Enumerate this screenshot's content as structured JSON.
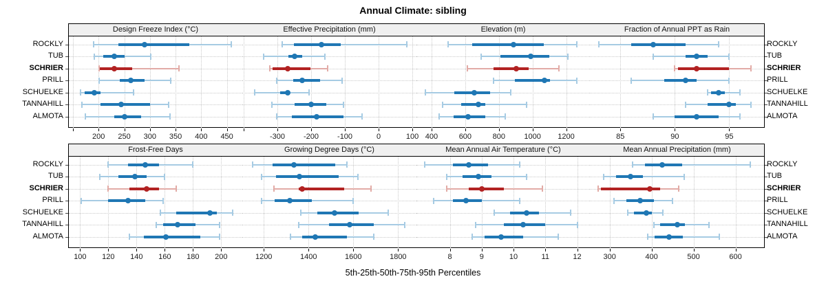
{
  "title": "Annual Climate: sibling",
  "xlabel": "5th-25th-50th-75th-95th Percentiles",
  "sites": [
    "ROCKLY",
    "TUB",
    "SCHRIER",
    "PRILL",
    "SCHUELKE",
    "TANNAHILL",
    "ALMOTA"
  ],
  "highlight_site": "SCHRIER",
  "colors": {
    "normal": "#1F77B4",
    "normal_light": "#A6CBE3",
    "highlight": "#B22222",
    "highlight_light": "#E2ABA6",
    "strip_bg": "#F0F0F0",
    "grid": "#C9C9C9",
    "border": "#000000",
    "tick_text": "#1a1a1a"
  },
  "chart_data": {
    "type": "dotplot-percentiles",
    "percentile_labels": [
      "5th",
      "25th",
      "50th",
      "75th",
      "95th"
    ],
    "site_order_top_to_bottom": [
      "ROCKLY",
      "TUB",
      "SCHRIER",
      "PRILL",
      "SCHUELKE",
      "TANNAHILL",
      "ALMOTA"
    ],
    "grid": "dotted",
    "layout_rows": 2,
    "layout_cols": 4,
    "panels": [
      {
        "title": "Design Freeze Index (°C)",
        "domain": [
          142,
          480
        ],
        "ticks": [
          200,
          250,
          300,
          350,
          400,
          450
        ],
        "minor_ticks": [
          150
        ],
        "values": [
          [
            190,
            239,
            290,
            377,
            459
          ],
          [
            192,
            209,
            230,
            250,
            302
          ],
          [
            201,
            203,
            231,
            265,
            356
          ],
          [
            201,
            241,
            263,
            290,
            340
          ],
          [
            165,
            173,
            191,
            204,
            268
          ],
          [
            167,
            204,
            244,
            300,
            336
          ],
          [
            174,
            230,
            250,
            283,
            339
          ]
        ]
      },
      {
        "title": "Effective Precipitation (mm)",
        "domain": [
          -404,
          112
        ],
        "ticks": [
          -300,
          -200,
          -100,
          0,
          100
        ],
        "minor_ticks": [
          -400
        ],
        "values": [
          [
            -285,
            -252,
            -170,
            -112,
            84
          ],
          [
            -340,
            -268,
            -250,
            -226,
            -159
          ],
          [
            -322,
            -315,
            -269,
            -203,
            -152
          ],
          [
            -303,
            -253,
            -226,
            -173,
            -108
          ],
          [
            -367,
            -292,
            -270,
            -263,
            -207
          ],
          [
            -317,
            -248,
            -200,
            -156,
            -105
          ],
          [
            -302,
            -258,
            -183,
            -105,
            -50
          ]
        ]
      },
      {
        "title": "Elevation (m)",
        "domain": [
          310,
          1341
        ],
        "ticks": [
          400,
          600,
          800,
          1000,
          1200
        ],
        "minor_ticks": [],
        "values": [
          [
            500,
            640,
            885,
            1065,
            1265
          ],
          [
            693,
            808,
            990,
            1100,
            1212
          ],
          [
            614,
            767,
            903,
            976,
            1155
          ],
          [
            767,
            897,
            1072,
            1104,
            1265
          ],
          [
            363,
            536,
            654,
            747,
            870
          ],
          [
            464,
            577,
            679,
            720,
            965
          ],
          [
            445,
            532,
            618,
            720,
            836
          ]
        ]
      },
      {
        "title": "Fraction of Annual PPT as Rain",
        "domain": [
          82.2,
          98.2
        ],
        "ticks": [
          85,
          90,
          95
        ],
        "minor_ticks": [],
        "values": [
          [
            83,
            86,
            88,
            91,
            94
          ],
          [
            88,
            91,
            92,
            93,
            95
          ],
          [
            90,
            90.3,
            92,
            95,
            97
          ],
          [
            86,
            89,
            91,
            92,
            95
          ],
          [
            93,
            93.3,
            94,
            94.6,
            96
          ],
          [
            91,
            93,
            95,
            95.6,
            97
          ],
          [
            88,
            90,
            92,
            94,
            96
          ]
        ]
      },
      {
        "title": "Frost-Free Days",
        "domain": [
          92,
          215
        ],
        "ticks": [
          100,
          120,
          140,
          160,
          180,
          200
        ],
        "minor_ticks": [],
        "values": [
          [
            120,
            134,
            146,
            156,
            180
          ],
          [
            114,
            127,
            139,
            147,
            160
          ],
          [
            120,
            135,
            147,
            156,
            168
          ],
          [
            101,
            120,
            134,
            146,
            159
          ],
          [
            157,
            168,
            192,
            197,
            208
          ],
          [
            154,
            159,
            169,
            182,
            199
          ],
          [
            135,
            145,
            161,
            185,
            199
          ]
        ]
      },
      {
        "title": "Growing Degree Days (°C)",
        "domain": [
          1104,
          1882
        ],
        "ticks": [
          1200,
          1400,
          1600,
          1800
        ],
        "minor_ticks": [],
        "values": [
          [
            1150,
            1240,
            1335,
            1520,
            1570
          ],
          [
            1190,
            1255,
            1360,
            1535,
            1620
          ],
          [
            1245,
            1355,
            1370,
            1560,
            1680
          ],
          [
            1190,
            1250,
            1315,
            1415,
            1600
          ],
          [
            1365,
            1440,
            1515,
            1625,
            1755
          ],
          [
            1355,
            1490,
            1585,
            1690,
            1830
          ],
          [
            1320,
            1370,
            1430,
            1570,
            1690
          ]
        ]
      },
      {
        "title": "Mean Annual Air Temperature (°C)",
        "domain": [
          6.95,
          12.4
        ],
        "ticks": [
          8,
          9,
          10,
          11,
          12
        ],
        "minor_ticks": [],
        "values": [
          [
            7.2,
            8.1,
            8.6,
            9.2,
            10.2
          ],
          [
            7.9,
            8.4,
            8.9,
            9.3,
            10.4
          ],
          [
            7.9,
            8.6,
            9.0,
            9.7,
            10.9
          ],
          [
            7.5,
            8.1,
            8.5,
            9.0,
            10.2
          ],
          [
            9.4,
            9.9,
            10.4,
            10.8,
            11.8
          ],
          [
            8.8,
            9.7,
            10.3,
            11.0,
            12.0
          ],
          [
            8.7,
            9.1,
            9.6,
            10.3,
            11.4
          ]
        ]
      },
      {
        "title": "Mean Annual Precipitation (mm)",
        "domain": [
          253,
          668
        ],
        "ticks": [
          300,
          400,
          500,
          600
        ],
        "minor_ticks": [],
        "values": [
          [
            355,
            385,
            425,
            472,
            635
          ],
          [
            285,
            315,
            350,
            380,
            478
          ],
          [
            273,
            280,
            395,
            420,
            465
          ],
          [
            310,
            340,
            373,
            405,
            450
          ],
          [
            343,
            358,
            387,
            401,
            427
          ],
          [
            405,
            420,
            462,
            479,
            537
          ],
          [
            390,
            407,
            441,
            475,
            561
          ]
        ]
      }
    ]
  }
}
